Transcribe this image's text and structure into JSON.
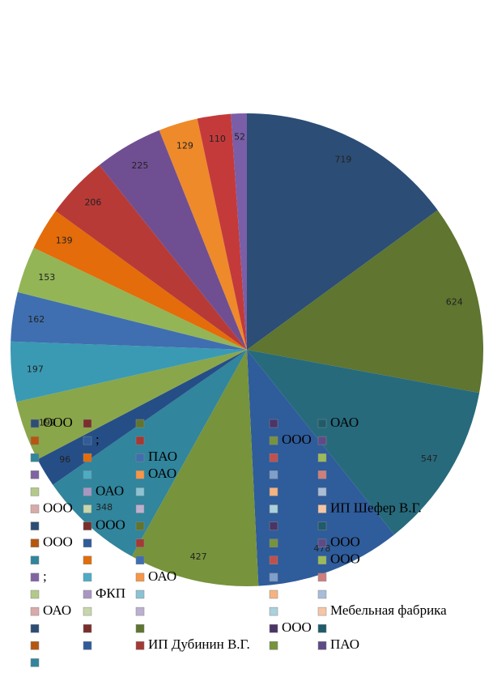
{
  "chart_data": {
    "type": "pie",
    "values": [
      719,
      624,
      547,
      478,
      427,
      348,
      96,
      199,
      197,
      162,
      153,
      139,
      206,
      225,
      129,
      110,
      52
    ],
    "colors": [
      "#2c4d75",
      "#5f7530",
      "#276a7c",
      "#2f5c9a",
      "#77933c",
      "#31859c",
      "#254e86",
      "#8aa64a",
      "#3a9ab3",
      "#3f6fb0",
      "#93b556",
      "#e46c0a",
      "#b83a36",
      "#6f4f91",
      "#ee8a2a",
      "#c43a3a",
      "#7b5ea8"
    ],
    "legend": {
      "rows": [
        [
          "ООО",
          null,
          null,
          null,
          "ОАО"
        ],
        [
          null,
          ";",
          null,
          "ООО",
          null
        ],
        [
          null,
          null,
          "ПАО",
          null,
          null
        ],
        [
          null,
          null,
          "ОАО",
          null,
          null
        ],
        [
          null,
          "ОАО",
          null,
          null,
          null
        ],
        [
          "ООО",
          null,
          null,
          null,
          "ИП Шефер В.Г."
        ],
        [
          null,
          "ООО",
          null,
          null,
          null
        ],
        [
          "ООО",
          null,
          null,
          null,
          "ООО"
        ],
        [
          null,
          null,
          null,
          null,
          "ООО"
        ],
        [
          ";",
          null,
          "ОАО",
          null,
          null
        ],
        [
          null,
          "ФКП",
          null,
          null,
          null
        ],
        [
          "ОАО",
          null,
          null,
          null,
          "Мебельная фабрика"
        ],
        [
          null,
          null,
          null,
          "ООО",
          null
        ],
        [
          null,
          null,
          "ИП Дубинин В.Г.",
          null,
          "ПАО"
        ],
        [
          null
        ]
      ]
    }
  }
}
